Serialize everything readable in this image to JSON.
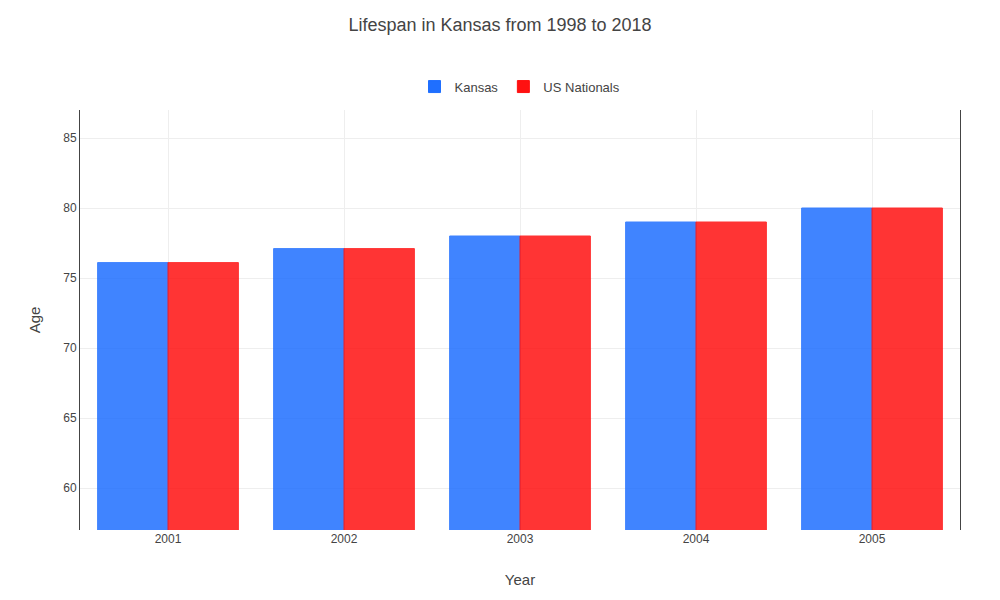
{
  "chart_data": {
    "type": "bar",
    "title": "Lifespan in Kansas from 1998 to 2018",
    "xlabel": "Year",
    "ylabel": "Age",
    "categories": [
      "2001",
      "2002",
      "2003",
      "2004",
      "2005"
    ],
    "series": [
      {
        "name": "Kansas",
        "color": "#1f6fff",
        "values": [
          76.1,
          77.1,
          78.0,
          79.0,
          80.0
        ]
      },
      {
        "name": "US Nationals",
        "color": "#ff1111",
        "values": [
          76.1,
          77.1,
          78.0,
          79.0,
          80.0
        ]
      }
    ],
    "ylim": [
      57,
      87
    ],
    "yticks": [
      60,
      65,
      70,
      75,
      80,
      85
    ],
    "grid": true,
    "legend": "top"
  }
}
